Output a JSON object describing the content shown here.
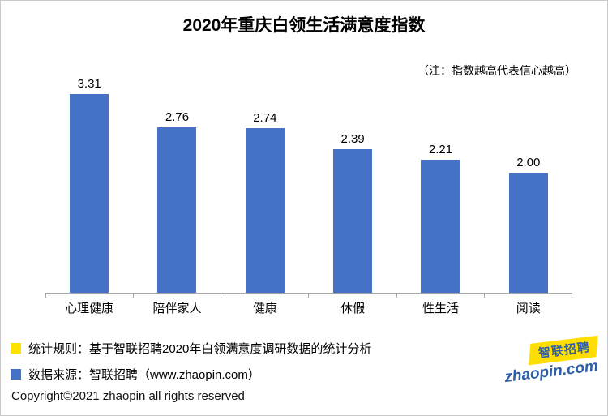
{
  "chart_data": {
    "type": "bar",
    "title": "2020年重庆白领生活满意度指数",
    "annotation": "（注：指数越高代表信心越高）",
    "categories": [
      "心理健康",
      "陪伴家人",
      "健康",
      "休假",
      "性生活",
      "阅读"
    ],
    "values": [
      3.31,
      2.76,
      2.74,
      2.39,
      2.21,
      2.0
    ],
    "value_labels": [
      "3.31",
      "2.76",
      "2.74",
      "2.39",
      "2.21",
      "2.00"
    ],
    "xlabel": "",
    "ylabel": "",
    "ylim": [
      0,
      3.6
    ],
    "grid": false,
    "legend_position": "none",
    "bar_color": "#4472c4"
  },
  "legend": {
    "items": [
      {
        "color": "#ffe200",
        "label": "统计规则：基于智联招聘2020年白领满意度调研数据的统计分析"
      },
      {
        "color": "#4472c4",
        "label": "数据来源：智联招聘（www.zhaopin.com）"
      }
    ]
  },
  "footer": {
    "copyright": "Copyright©2021 zhaopin all rights reserved"
  },
  "logo": {
    "name": "智联招聘",
    "domain": "zhaopin.com"
  },
  "colors": {
    "bar": "#4472c4",
    "yellow": "#ffe200",
    "logo_blue": "#2f5fa8",
    "axis": "#a6a6a6"
  }
}
